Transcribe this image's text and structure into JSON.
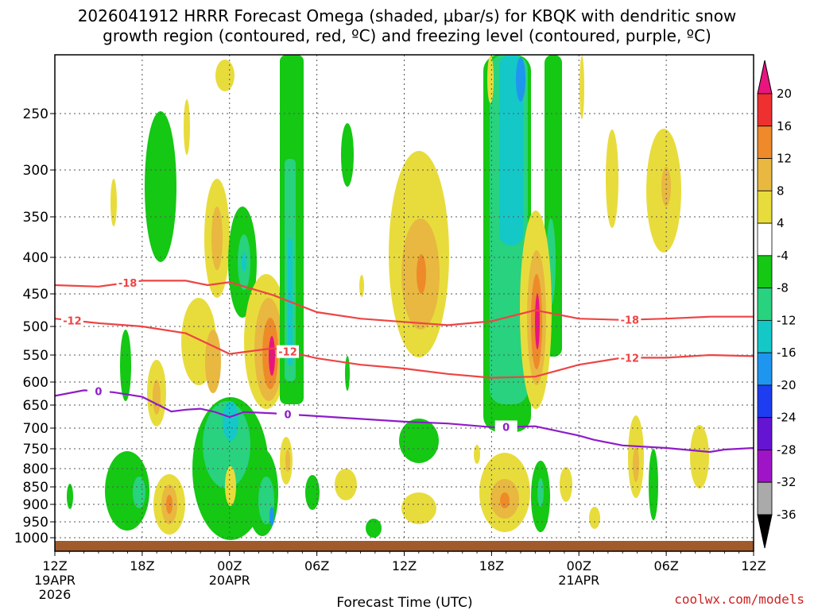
{
  "chart_data": {
    "type": "heatmap",
    "title_line1": "2026041912 HRRR Forecast Omega (shaded, μbar/s) for KBQK with dendritic snow",
    "title_line2": "growth region (contoured, red, ºC) and freezing level (contoured, purple, ºC)",
    "xlabel": "Forecast Time (UTC)",
    "ylabel": "",
    "credit": "coolwx.com/models",
    "x_range_hours": [
      0,
      48
    ],
    "x_ticks": [
      {
        "hour": 0,
        "label": "12Z",
        "sub1": "19APR",
        "sub2": "2026"
      },
      {
        "hour": 6,
        "label": "18Z",
        "sub1": "",
        "sub2": ""
      },
      {
        "hour": 12,
        "label": "00Z",
        "sub1": "20APR",
        "sub2": ""
      },
      {
        "hour": 18,
        "label": "06Z",
        "sub1": "",
        "sub2": ""
      },
      {
        "hour": 24,
        "label": "12Z",
        "sub1": "",
        "sub2": ""
      },
      {
        "hour": 30,
        "label": "18Z",
        "sub1": "",
        "sub2": ""
      },
      {
        "hour": 36,
        "label": "00Z",
        "sub1": "21APR",
        "sub2": ""
      },
      {
        "hour": 42,
        "label": "06Z",
        "sub1": "",
        "sub2": ""
      },
      {
        "hour": 48,
        "label": "12Z",
        "sub1": "",
        "sub2": ""
      }
    ],
    "y_range_hpa": [
      1025,
      200
    ],
    "y_ticks": [
      250,
      300,
      350,
      400,
      450,
      500,
      550,
      600,
      650,
      700,
      750,
      800,
      850,
      900,
      950,
      1000
    ],
    "grid": true,
    "colorbar": {
      "levels": [
        20,
        16,
        12,
        8,
        4,
        -4,
        -8,
        -12,
        -16,
        -20,
        -24,
        -28,
        -32,
        -36
      ],
      "bands": [
        {
          "color": "#e8157f"
        },
        {
          "color": "#ee3030"
        },
        {
          "color": "#ee8a2a"
        },
        {
          "color": "#e8b840"
        },
        {
          "color": "#e8dc3c"
        },
        {
          "color": "#ffffff"
        },
        {
          "color": "#14c814"
        },
        {
          "color": "#28d27e"
        },
        {
          "color": "#14c8c8"
        },
        {
          "color": "#1e96f0"
        },
        {
          "color": "#1e3cf0"
        },
        {
          "color": "#6414d2"
        },
        {
          "color": "#a014c8"
        },
        {
          "color": "#aaaaaa"
        },
        {
          "color": "#000000"
        }
      ]
    },
    "contours": [
      {
        "name": "dgz-minus18",
        "label": "-18",
        "color": "#ee4444",
        "points": [
          [
            0,
            438
          ],
          [
            3,
            440
          ],
          [
            6,
            432
          ],
          [
            9,
            432
          ],
          [
            10.5,
            438
          ],
          [
            12,
            434
          ],
          [
            15,
            452
          ],
          [
            18,
            478
          ],
          [
            21,
            488
          ],
          [
            24,
            493
          ],
          [
            27,
            498
          ],
          [
            30,
            492
          ],
          [
            33,
            475
          ],
          [
            36,
            488
          ],
          [
            39,
            490
          ],
          [
            42,
            488
          ],
          [
            45,
            485
          ],
          [
            48,
            485
          ]
        ],
        "labels_at_hours": [
          5,
          39.5
        ]
      },
      {
        "name": "dgz-minus12",
        "label": "-12",
        "color": "#ee4444",
        "points": [
          [
            0,
            488
          ],
          [
            3,
            495
          ],
          [
            6,
            500
          ],
          [
            9,
            512
          ],
          [
            12,
            548
          ],
          [
            15,
            538
          ],
          [
            18,
            556
          ],
          [
            21,
            568
          ],
          [
            24,
            575
          ],
          [
            27,
            585
          ],
          [
            30,
            592
          ],
          [
            33,
            590
          ],
          [
            36,
            568
          ],
          [
            39,
            555
          ],
          [
            42,
            555
          ],
          [
            45,
            550
          ],
          [
            48,
            552
          ]
        ],
        "labels_at_hours": [
          1.2,
          16,
          39.5
        ]
      },
      {
        "name": "freezing-level-0",
        "label": "0",
        "color": "#8e1cc8",
        "points": [
          [
            0,
            630
          ],
          [
            2,
            618
          ],
          [
            4,
            622
          ],
          [
            6,
            632
          ],
          [
            7,
            648
          ],
          [
            8,
            664
          ],
          [
            9,
            660
          ],
          [
            10,
            658
          ],
          [
            11,
            665
          ],
          [
            12,
            676
          ],
          [
            13,
            665
          ],
          [
            15,
            668
          ],
          [
            18,
            674
          ],
          [
            21,
            680
          ],
          [
            24,
            686
          ],
          [
            27,
            690
          ],
          [
            30,
            698
          ],
          [
            33,
            696
          ],
          [
            36,
            718
          ],
          [
            37,
            728
          ],
          [
            39,
            742
          ],
          [
            42,
            748
          ],
          [
            45,
            758
          ],
          [
            46,
            752
          ],
          [
            48,
            748
          ]
        ],
        "labels_at_hours": [
          3,
          16,
          31
        ]
      }
    ]
  }
}
